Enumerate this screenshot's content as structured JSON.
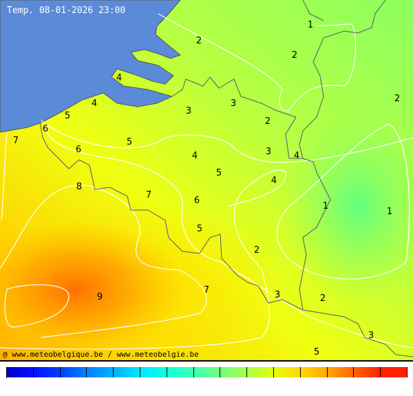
{
  "title": "Temp. 08-01-2026 23:00",
  "credit": "@ www.meteobelgique.be / www.meteobelgie.be",
  "contour_labels": [
    "1",
    "2",
    "2",
    "2",
    "4",
    "4",
    "5",
    "3",
    "3",
    "2",
    "6",
    "7",
    "6",
    "5",
    "3",
    "4",
    "4",
    "5",
    "4",
    "8",
    "7",
    "6",
    "1",
    "1",
    "5",
    "2",
    "9",
    "7",
    "3",
    "2",
    "3",
    "5"
  ],
  "colors": {
    "sea": "#5b8ad8",
    "border": "#555577",
    "isoline": "#ffffff"
  },
  "legend_colors": [
    "#0000c8",
    "#0010ff",
    "#0040ff",
    "#0080ff",
    "#00b0ff",
    "#00e8ff",
    "#10ffe0",
    "#40ffb0",
    "#70ff80",
    "#a8ff48",
    "#e0ff10",
    "#ffd800",
    "#ffa800",
    "#ff6800",
    "#ff2000"
  ]
}
